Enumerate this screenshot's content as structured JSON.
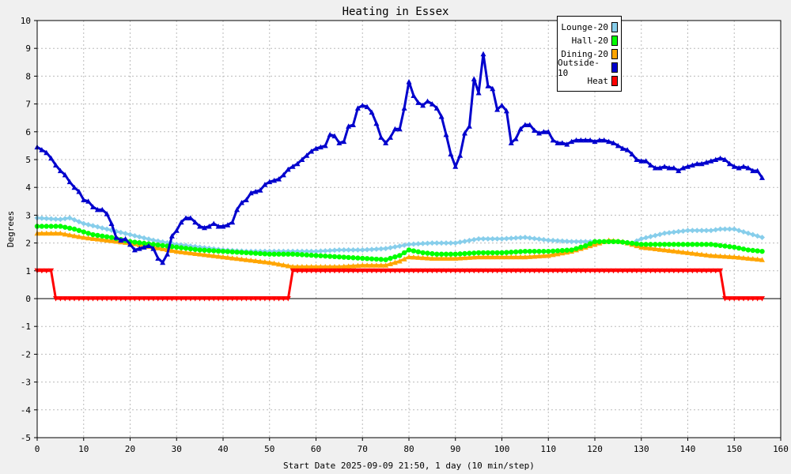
{
  "chart_data": {
    "type": "line",
    "title": "Heating in Essex",
    "xlabel": "Start Date 2025-09-09 21:50, 1 day (10 min/step)",
    "ylabel": "Degrees",
    "xlim": [
      0,
      160
    ],
    "ylim": [
      -5,
      10
    ],
    "x_ticks": [
      "0",
      "10",
      "20",
      "30",
      "40",
      "50",
      "60",
      "70",
      "80",
      "90",
      "100",
      "110",
      "120",
      "130",
      "140",
      "150",
      "160"
    ],
    "y_ticks": [
      "-5",
      "-4",
      "-3",
      "-2",
      "-1",
      "0",
      "1",
      "2",
      "3",
      "4",
      "5",
      "6",
      "7",
      "8",
      "9",
      "10"
    ],
    "grid": true,
    "legend_position": "top-right",
    "series": [
      {
        "name": "Lounge-20",
        "color": "#87ceeb",
        "marker": "diamond",
        "points": [
          [
            0,
            2.9
          ],
          [
            5,
            2.85
          ],
          [
            7,
            2.9
          ],
          [
            10,
            2.7
          ],
          [
            15,
            2.5
          ],
          [
            20,
            2.3
          ],
          [
            25,
            2.1
          ],
          [
            30,
            1.95
          ],
          [
            35,
            1.85
          ],
          [
            40,
            1.75
          ],
          [
            45,
            1.7
          ],
          [
            50,
            1.7
          ],
          [
            55,
            1.7
          ],
          [
            60,
            1.7
          ],
          [
            65,
            1.75
          ],
          [
            70,
            1.75
          ],
          [
            75,
            1.8
          ],
          [
            80,
            1.95
          ],
          [
            85,
            2.0
          ],
          [
            90,
            2.0
          ],
          [
            95,
            2.15
          ],
          [
            100,
            2.15
          ],
          [
            105,
            2.2
          ],
          [
            110,
            2.1
          ],
          [
            115,
            2.05
          ],
          [
            120,
            2.05
          ],
          [
            125,
            2.05
          ],
          [
            128,
            2.0
          ],
          [
            130,
            2.15
          ],
          [
            135,
            2.35
          ],
          [
            140,
            2.45
          ],
          [
            145,
            2.45
          ],
          [
            147,
            2.5
          ],
          [
            150,
            2.5
          ],
          [
            153,
            2.35
          ],
          [
            156,
            2.2
          ]
        ]
      },
      {
        "name": "Hall-20",
        "color": "#00ff00",
        "marker": "circle",
        "points": [
          [
            0,
            2.6
          ],
          [
            5,
            2.6
          ],
          [
            8,
            2.5
          ],
          [
            12,
            2.3
          ],
          [
            16,
            2.2
          ],
          [
            20,
            2.05
          ],
          [
            25,
            1.95
          ],
          [
            30,
            1.85
          ],
          [
            35,
            1.75
          ],
          [
            40,
            1.7
          ],
          [
            45,
            1.65
          ],
          [
            50,
            1.6
          ],
          [
            55,
            1.6
          ],
          [
            60,
            1.55
          ],
          [
            65,
            1.5
          ],
          [
            70,
            1.45
          ],
          [
            75,
            1.4
          ],
          [
            78,
            1.55
          ],
          [
            80,
            1.75
          ],
          [
            83,
            1.65
          ],
          [
            86,
            1.6
          ],
          [
            90,
            1.6
          ],
          [
            95,
            1.65
          ],
          [
            100,
            1.65
          ],
          [
            105,
            1.7
          ],
          [
            110,
            1.7
          ],
          [
            115,
            1.75
          ],
          [
            118,
            1.9
          ],
          [
            120,
            2.05
          ],
          [
            125,
            2.05
          ],
          [
            130,
            1.95
          ],
          [
            135,
            1.95
          ],
          [
            140,
            1.95
          ],
          [
            145,
            1.95
          ],
          [
            150,
            1.85
          ],
          [
            153,
            1.75
          ],
          [
            156,
            1.7
          ]
        ]
      },
      {
        "name": "Dining-20",
        "color": "#ffa500",
        "marker": "triangle",
        "points": [
          [
            0,
            2.35
          ],
          [
            5,
            2.35
          ],
          [
            10,
            2.2
          ],
          [
            15,
            2.1
          ],
          [
            20,
            2.0
          ],
          [
            25,
            1.85
          ],
          [
            30,
            1.7
          ],
          [
            35,
            1.6
          ],
          [
            40,
            1.5
          ],
          [
            45,
            1.4
          ],
          [
            50,
            1.3
          ],
          [
            55,
            1.15
          ],
          [
            60,
            1.15
          ],
          [
            65,
            1.15
          ],
          [
            70,
            1.2
          ],
          [
            75,
            1.2
          ],
          [
            78,
            1.35
          ],
          [
            80,
            1.5
          ],
          [
            85,
            1.45
          ],
          [
            90,
            1.45
          ],
          [
            95,
            1.5
          ],
          [
            100,
            1.5
          ],
          [
            105,
            1.5
          ],
          [
            110,
            1.55
          ],
          [
            115,
            1.7
          ],
          [
            120,
            1.95
          ],
          [
            123,
            2.1
          ],
          [
            126,
            2.05
          ],
          [
            130,
            1.85
          ],
          [
            135,
            1.75
          ],
          [
            140,
            1.65
          ],
          [
            145,
            1.55
          ],
          [
            150,
            1.5
          ],
          [
            153,
            1.45
          ],
          [
            156,
            1.4
          ]
        ]
      },
      {
        "name": "Outside-10",
        "color": "#0000cd",
        "marker": "triangle",
        "points": [
          [
            0,
            5.45
          ],
          [
            1,
            5.35
          ],
          [
            2,
            5.25
          ],
          [
            3,
            5.05
          ],
          [
            4,
            4.8
          ],
          [
            5,
            4.6
          ],
          [
            6,
            4.45
          ],
          [
            7,
            4.2
          ],
          [
            8,
            4.0
          ],
          [
            9,
            3.85
          ],
          [
            10,
            3.55
          ],
          [
            11,
            3.5
          ],
          [
            12,
            3.3
          ],
          [
            13,
            3.2
          ],
          [
            14,
            3.2
          ],
          [
            15,
            3.05
          ],
          [
            16,
            2.7
          ],
          [
            17,
            2.2
          ],
          [
            18,
            2.1
          ],
          [
            19,
            2.15
          ],
          [
            20,
            1.95
          ],
          [
            21,
            1.75
          ],
          [
            22,
            1.8
          ],
          [
            23,
            1.85
          ],
          [
            24,
            1.9
          ],
          [
            25,
            1.8
          ],
          [
            26,
            1.45
          ],
          [
            27,
            1.3
          ],
          [
            28,
            1.6
          ],
          [
            29,
            2.25
          ],
          [
            30,
            2.45
          ],
          [
            31,
            2.75
          ],
          [
            32,
            2.9
          ],
          [
            33,
            2.9
          ],
          [
            34,
            2.75
          ],
          [
            35,
            2.6
          ],
          [
            36,
            2.55
          ],
          [
            37,
            2.6
          ],
          [
            38,
            2.7
          ],
          [
            39,
            2.6
          ],
          [
            40,
            2.6
          ],
          [
            41,
            2.65
          ],
          [
            42,
            2.75
          ],
          [
            43,
            3.2
          ],
          [
            44,
            3.45
          ],
          [
            45,
            3.55
          ],
          [
            46,
            3.8
          ],
          [
            47,
            3.85
          ],
          [
            48,
            3.9
          ],
          [
            49,
            4.1
          ],
          [
            50,
            4.2
          ],
          [
            51,
            4.25
          ],
          [
            52,
            4.3
          ],
          [
            53,
            4.45
          ],
          [
            54,
            4.65
          ],
          [
            55,
            4.75
          ],
          [
            56,
            4.85
          ],
          [
            57,
            5.0
          ],
          [
            58,
            5.15
          ],
          [
            59,
            5.3
          ],
          [
            60,
            5.4
          ],
          [
            61,
            5.45
          ],
          [
            62,
            5.5
          ],
          [
            63,
            5.9
          ],
          [
            64,
            5.85
          ],
          [
            65,
            5.6
          ],
          [
            66,
            5.65
          ],
          [
            67,
            6.2
          ],
          [
            68,
            6.25
          ],
          [
            69,
            6.85
          ],
          [
            70,
            6.95
          ],
          [
            71,
            6.9
          ],
          [
            72,
            6.7
          ],
          [
            73,
            6.3
          ],
          [
            74,
            5.8
          ],
          [
            75,
            5.6
          ],
          [
            76,
            5.8
          ],
          [
            77,
            6.1
          ],
          [
            78,
            6.1
          ],
          [
            79,
            6.85
          ],
          [
            80,
            7.8
          ],
          [
            81,
            7.3
          ],
          [
            82,
            7.05
          ],
          [
            83,
            6.95
          ],
          [
            84,
            7.1
          ],
          [
            85,
            7.0
          ],
          [
            86,
            6.85
          ],
          [
            87,
            6.55
          ],
          [
            88,
            5.9
          ],
          [
            89,
            5.2
          ],
          [
            90,
            4.75
          ],
          [
            91,
            5.15
          ],
          [
            92,
            5.95
          ],
          [
            93,
            6.2
          ],
          [
            94,
            7.9
          ],
          [
            95,
            7.4
          ],
          [
            96,
            8.8
          ],
          [
            97,
            7.65
          ],
          [
            98,
            7.55
          ],
          [
            99,
            6.8
          ],
          [
            100,
            6.95
          ],
          [
            101,
            6.75
          ],
          [
            102,
            5.6
          ],
          [
            103,
            5.75
          ],
          [
            104,
            6.1
          ],
          [
            105,
            6.25
          ],
          [
            106,
            6.25
          ],
          [
            107,
            6.05
          ],
          [
            108,
            5.95
          ],
          [
            109,
            6.0
          ],
          [
            110,
            6.0
          ],
          [
            111,
            5.7
          ],
          [
            112,
            5.6
          ],
          [
            113,
            5.6
          ],
          [
            114,
            5.55
          ],
          [
            115,
            5.65
          ],
          [
            116,
            5.7
          ],
          [
            117,
            5.7
          ],
          [
            118,
            5.7
          ],
          [
            119,
            5.7
          ],
          [
            120,
            5.65
          ],
          [
            121,
            5.7
          ],
          [
            122,
            5.7
          ],
          [
            123,
            5.65
          ],
          [
            124,
            5.6
          ],
          [
            125,
            5.5
          ],
          [
            126,
            5.4
          ],
          [
            127,
            5.35
          ],
          [
            128,
            5.2
          ],
          [
            129,
            5.0
          ],
          [
            130,
            4.95
          ],
          [
            131,
            4.95
          ],
          [
            132,
            4.8
          ],
          [
            133,
            4.7
          ],
          [
            134,
            4.7
          ],
          [
            135,
            4.75
          ],
          [
            136,
            4.7
          ],
          [
            137,
            4.7
          ],
          [
            138,
            4.6
          ],
          [
            139,
            4.7
          ],
          [
            140,
            4.75
          ],
          [
            141,
            4.8
          ],
          [
            142,
            4.85
          ],
          [
            143,
            4.85
          ],
          [
            144,
            4.9
          ],
          [
            145,
            4.95
          ],
          [
            146,
            5.0
          ],
          [
            147,
            5.05
          ],
          [
            148,
            5.0
          ],
          [
            149,
            4.85
          ],
          [
            150,
            4.75
          ],
          [
            151,
            4.7
          ],
          [
            152,
            4.75
          ],
          [
            153,
            4.7
          ],
          [
            154,
            4.6
          ],
          [
            155,
            4.6
          ],
          [
            156,
            4.35
          ]
        ]
      },
      {
        "name": "Heat",
        "color": "#ff0000",
        "marker": "triangle-down",
        "points": [
          [
            0,
            1
          ],
          [
            3,
            1
          ],
          [
            4,
            0
          ],
          [
            54,
            0
          ],
          [
            55,
            1
          ],
          [
            147,
            1
          ],
          [
            148,
            0
          ],
          [
            156,
            0
          ]
        ]
      }
    ]
  }
}
